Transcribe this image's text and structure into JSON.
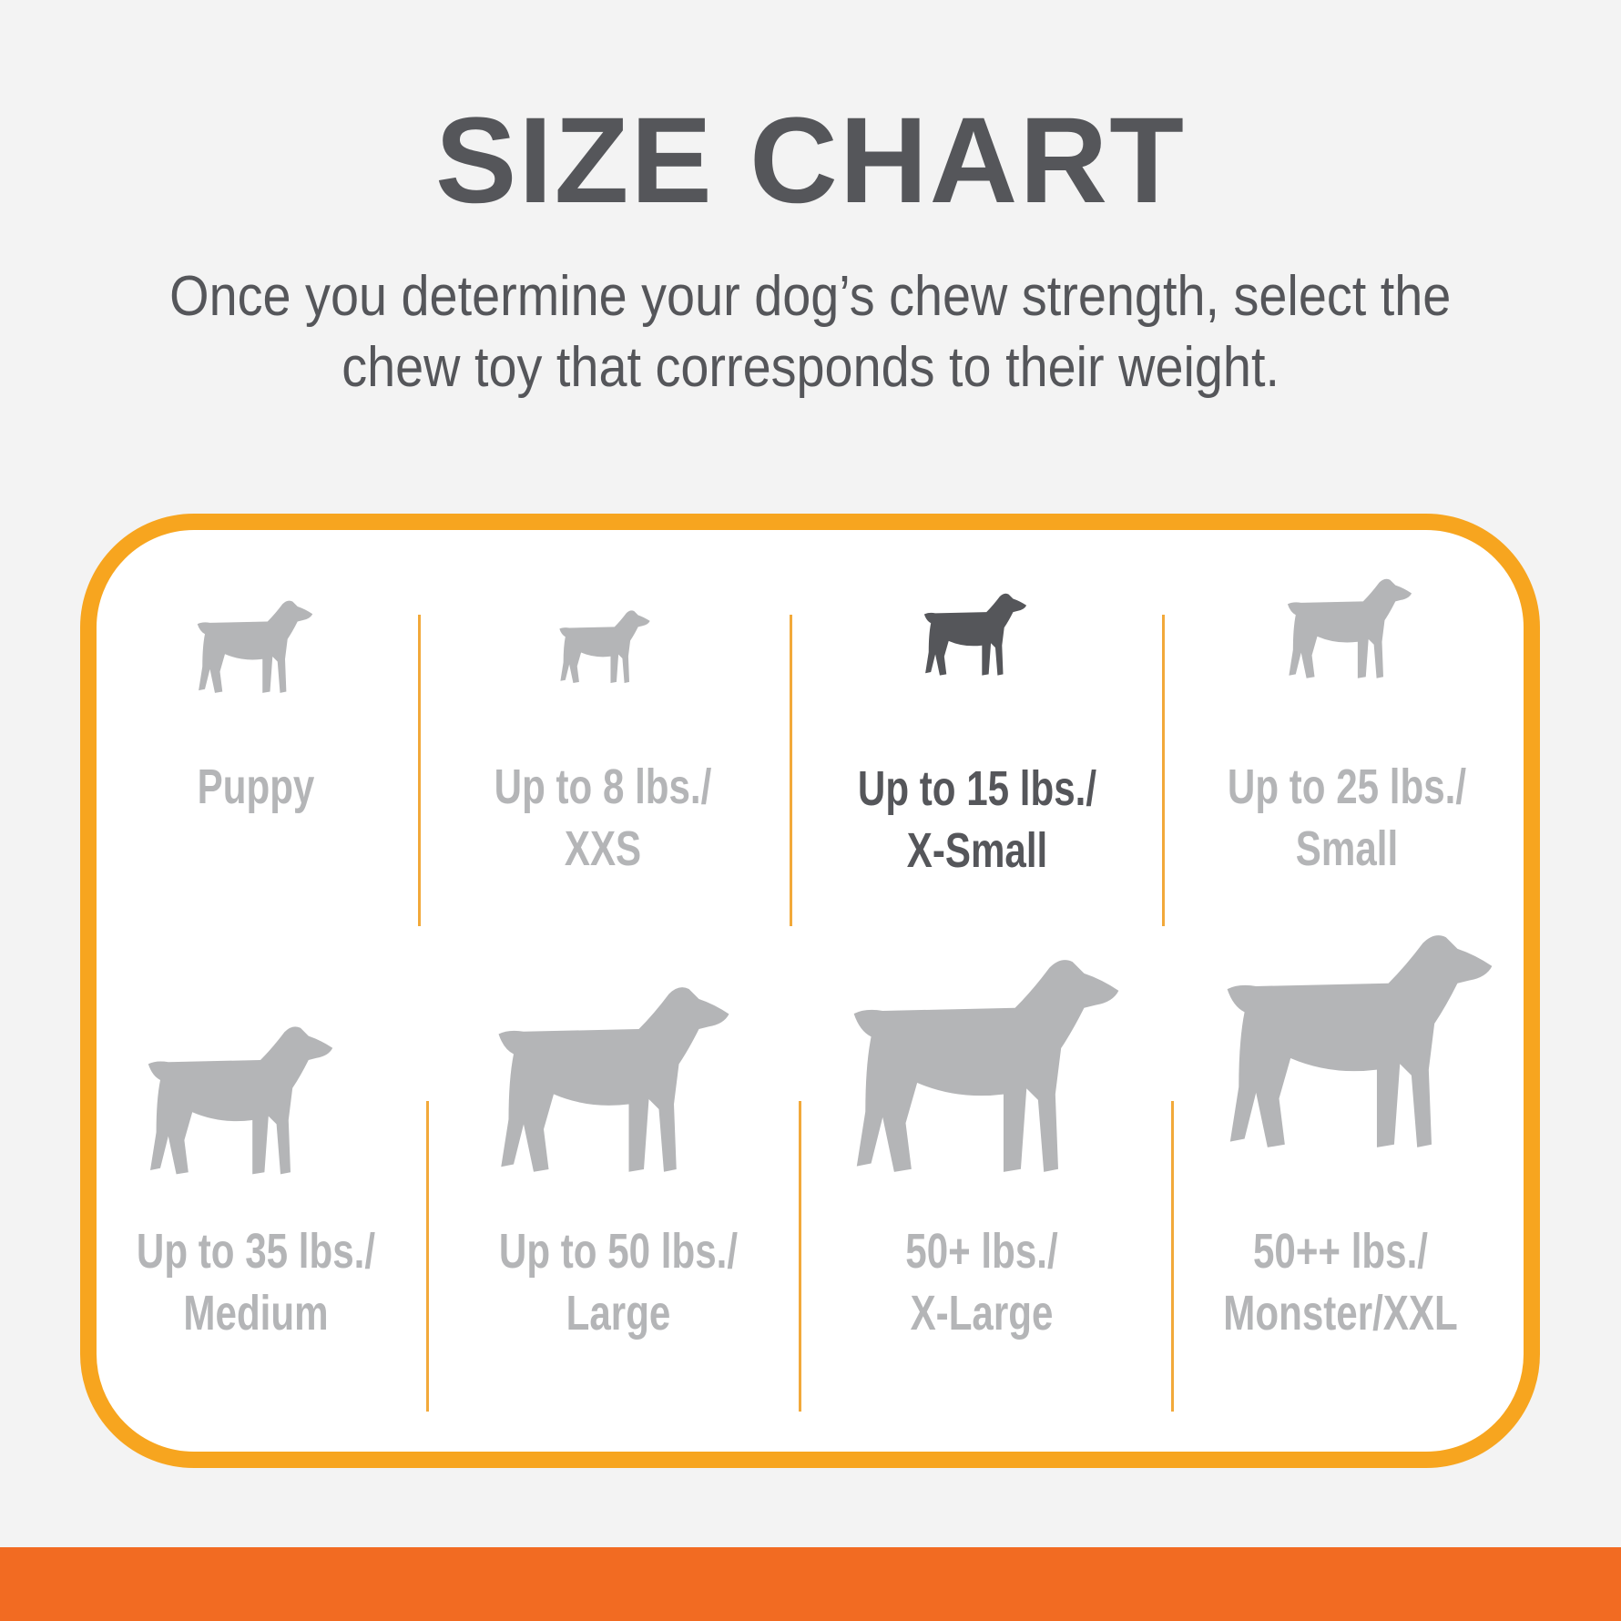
{
  "title": "SIZE CHART",
  "subtitle": {
    "line1": "Once you determine your dog’s chew strength, select the",
    "line2": "chew toy that corresponds to their weight."
  },
  "colors": {
    "border": "#f7a51f",
    "band": "#f26b22",
    "active": "#55565a",
    "inactive": "#b4b5b7"
  },
  "sizes": [
    {
      "line1": "Puppy",
      "line2": "",
      "icon": "puppy-icon",
      "active": false
    },
    {
      "line1": "Up to 8 lbs./",
      "line2": "XXS",
      "icon": "chihuahua-icon",
      "active": false
    },
    {
      "line1": "Up to 15 lbs./",
      "line2": "X-Small",
      "icon": "small-terrier-icon",
      "active": true
    },
    {
      "line1": "Up to 25 lbs./",
      "line2": "Small",
      "icon": "yorkie-icon",
      "active": false
    },
    {
      "line1": "Up to 35 lbs./",
      "line2": "Medium",
      "icon": "beagle-icon",
      "active": false
    },
    {
      "line1": "Up to 50 lbs./",
      "line2": "Large",
      "icon": "labrador-icon",
      "active": false
    },
    {
      "line1": "50+ lbs./",
      "line2": "X-Large",
      "icon": "shepherd-icon",
      "active": false
    },
    {
      "line1": "50++ lbs./",
      "line2": "Monster/XXL",
      "icon": "great-dane-icon",
      "active": false
    }
  ]
}
